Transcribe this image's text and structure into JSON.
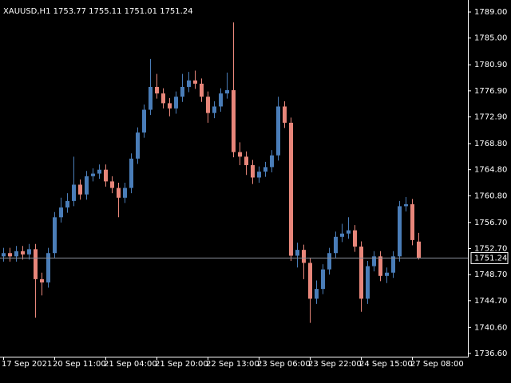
{
  "chart_data": {
    "type": "candlestick",
    "title": "XAUUSD,H1  1753.77 1755.11 1751.01 1751.24",
    "categories": [
      "17 Sep 2021",
      null,
      null,
      null,
      null,
      null,
      null,
      null,
      "20 Sep 11:00",
      null,
      null,
      null,
      null,
      null,
      null,
      null,
      "21 Sep 04:00",
      null,
      null,
      null,
      null,
      null,
      null,
      null,
      "21 Sep 20:00",
      null,
      null,
      null,
      null,
      null,
      null,
      null,
      "22 Sep 13:00",
      null,
      null,
      null,
      null,
      null,
      null,
      null,
      "23 Sep 06:00",
      null,
      null,
      null,
      null,
      null,
      null,
      null,
      "23 Sep 22:00",
      null,
      null,
      null,
      null,
      null,
      null,
      null,
      "24 Sep 15:00",
      null,
      null,
      null,
      null,
      null,
      null,
      null,
      "27 Sep 08:00",
      null
    ],
    "open": [
      1751.5,
      1752.0,
      1751.5,
      1752.3,
      1751.8,
      1752.6,
      1748.0,
      1747.5,
      1752.0,
      1757.5,
      1759.0,
      1760.0,
      1762.5,
      1761.0,
      1763.8,
      1764.2,
      1764.8,
      1763.0,
      1762.0,
      1760.5,
      1762.0,
      1766.5,
      1770.5,
      1774.0,
      1777.5,
      1776.5,
      1775.0,
      1774.2,
      1776.0,
      1777.5,
      1778.5,
      1778.0,
      1776.0,
      1773.5,
      1774.5,
      1776.5,
      1777.0,
      1767.5,
      1766.8,
      1765.5,
      1763.6,
      1764.5,
      1765.2,
      1767.0,
      1774.5,
      1772.0,
      1751.6,
      1752.5,
      1750.5,
      1745.0,
      1746.5,
      1749.5,
      1752.0,
      1754.5,
      1755.0,
      1755.5,
      1753.0,
      1745.0,
      1750.0,
      1751.5,
      1748.5,
      1749.0,
      1751.5,
      1759.2,
      1759.5,
      1753.77
    ],
    "high": [
      1752.8,
      1752.8,
      1753.1,
      1753.1,
      1753.4,
      1753.4,
      1749.0,
      1752.8,
      1758.3,
      1760.5,
      1761.2,
      1766.8,
      1763.3,
      1764.6,
      1765.0,
      1765.6,
      1765.6,
      1763.8,
      1762.8,
      1762.8,
      1767.3,
      1771.3,
      1774.8,
      1781.8,
      1779.5,
      1777.3,
      1775.8,
      1776.8,
      1779.5,
      1779.8,
      1780.0,
      1778.8,
      1776.8,
      1775.3,
      1777.3,
      1779.7,
      1787.4,
      1769.0,
      1767.6,
      1766.3,
      1765.3,
      1766.0,
      1767.8,
      1776.0,
      1775.3,
      1772.8,
      1753.6,
      1753.3,
      1751.3,
      1747.8,
      1750.3,
      1752.8,
      1755.3,
      1756.5,
      1757.5,
      1756.3,
      1753.8,
      1750.8,
      1752.3,
      1752.3,
      1749.8,
      1752.3,
      1760.0,
      1760.6,
      1760.3,
      1755.11
    ],
    "low": [
      1750.7,
      1750.7,
      1750.7,
      1751.0,
      1751.0,
      1742.1,
      1745.5,
      1746.7,
      1751.2,
      1756.7,
      1758.2,
      1759.2,
      1760.2,
      1760.2,
      1763.0,
      1763.4,
      1762.2,
      1761.2,
      1757.5,
      1759.7,
      1761.2,
      1765.7,
      1769.7,
      1773.2,
      1775.7,
      1774.2,
      1773.0,
      1773.4,
      1775.2,
      1776.7,
      1777.2,
      1775.2,
      1772.0,
      1772.7,
      1773.7,
      1775.7,
      1766.7,
      1765.5,
      1764.0,
      1762.6,
      1762.8,
      1763.7,
      1764.4,
      1766.2,
      1771.2,
      1750.8,
      1749.8,
      1748.0,
      1741.3,
      1744.2,
      1745.7,
      1748.7,
      1751.2,
      1753.7,
      1754.2,
      1752.2,
      1743.0,
      1744.2,
      1749.2,
      1747.7,
      1747.4,
      1748.2,
      1750.7,
      1758.4,
      1753.2,
      1751.01
    ],
    "close": [
      1752.0,
      1751.5,
      1752.3,
      1751.8,
      1752.6,
      1748.0,
      1747.5,
      1752.0,
      1757.5,
      1759.0,
      1760.0,
      1762.5,
      1761.0,
      1763.8,
      1764.2,
      1764.8,
      1763.0,
      1762.0,
      1760.5,
      1762.0,
      1766.5,
      1770.5,
      1774.0,
      1777.5,
      1776.5,
      1775.0,
      1774.2,
      1776.0,
      1777.5,
      1778.5,
      1778.0,
      1776.0,
      1773.5,
      1774.5,
      1776.5,
      1777.0,
      1767.5,
      1766.8,
      1765.5,
      1763.6,
      1764.5,
      1765.2,
      1767.0,
      1774.5,
      1772.0,
      1751.6,
      1752.5,
      1750.5,
      1745.0,
      1746.5,
      1749.5,
      1752.0,
      1754.5,
      1755.0,
      1755.5,
      1753.0,
      1745.0,
      1750.0,
      1751.5,
      1748.5,
      1749.0,
      1751.5,
      1759.2,
      1759.5,
      1754.0,
      1751.24
    ],
    "up_color": "#4a7db8",
    "down_color": "#e8867a",
    "ylim": [
      1736.11,
      1790.84
    ],
    "yticks": [
      {
        "value": 1789,
        "label": "1789.00"
      },
      {
        "value": 1785,
        "label": "1785.00"
      },
      {
        "value": 1780.9,
        "label": "1780.90"
      },
      {
        "value": 1776.9,
        "label": "1776.90"
      },
      {
        "value": 1772.9,
        "label": "1772.90"
      },
      {
        "value": 1768.8,
        "label": "1768.80"
      },
      {
        "value": 1764.8,
        "label": "1764.80"
      },
      {
        "value": 1760.8,
        "label": "1760.80"
      },
      {
        "value": 1756.7,
        "label": "1756.70"
      },
      {
        "value": 1752.7,
        "label": "1752.70"
      },
      {
        "value": 1748.7,
        "label": "1748.70"
      },
      {
        "value": 1744.7,
        "label": "1744.70"
      },
      {
        "value": 1740.6,
        "label": "1740.60"
      },
      {
        "value": 1736.6,
        "label": "1736.60"
      }
    ],
    "last_price": {
      "value": 1751.24,
      "label": "1751.24"
    },
    "grid": false
  }
}
